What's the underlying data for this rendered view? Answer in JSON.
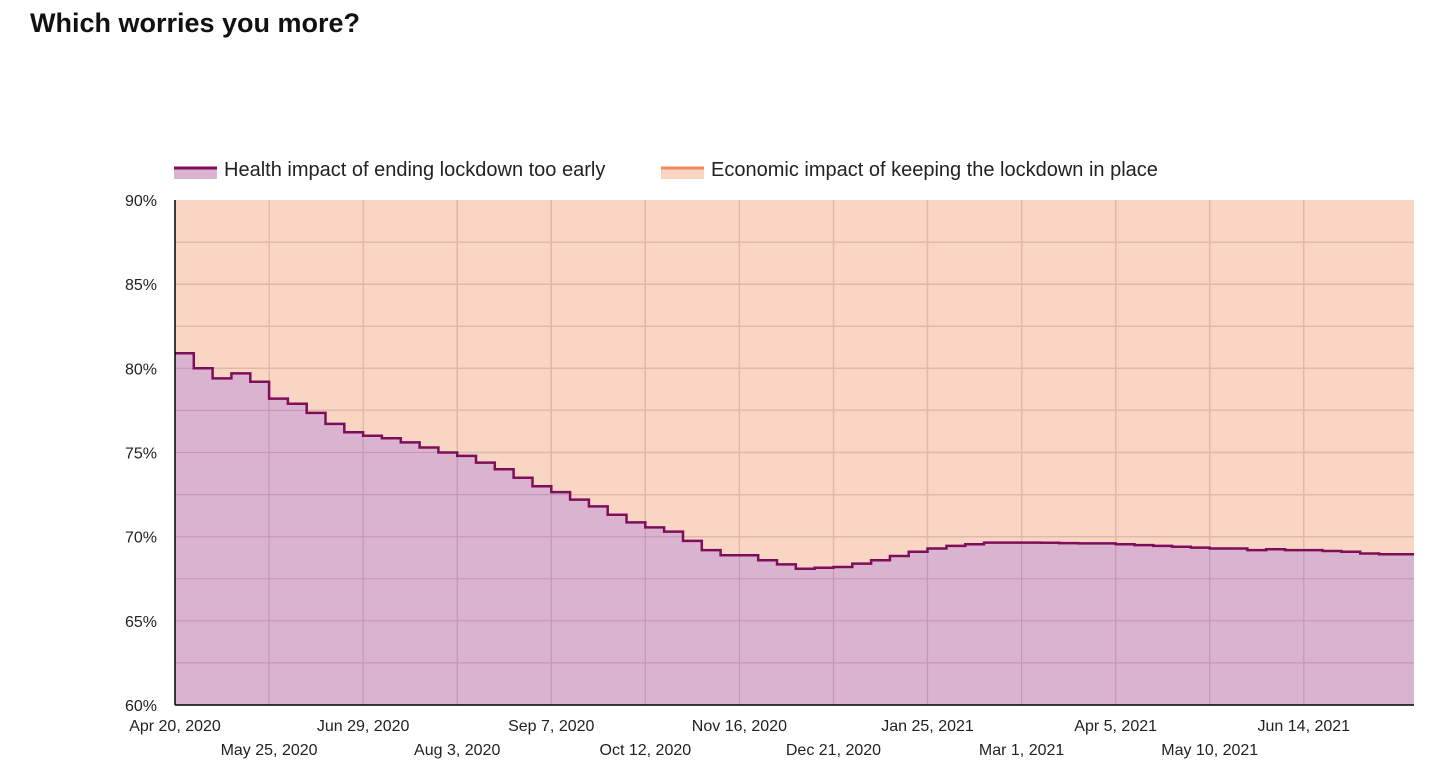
{
  "page_title": "Which worries you more?",
  "colors": {
    "health_line": "#7e0e5c",
    "health_fill": "#dab3cf",
    "economic_line": "#f08a5d",
    "economic_fill": "#f9d6c4",
    "grid_on_economic": "#e4b9a6",
    "grid_on_health": "#c598b8",
    "axis": "#000000"
  },
  "chart_data": {
    "type": "area",
    "title": "Which worries you more?",
    "stacked_to": 100,
    "legend_position": "top",
    "ylim": [
      60,
      90
    ],
    "y_ticks": [
      60,
      65,
      70,
      75,
      80,
      85,
      90
    ],
    "y_tick_labels": [
      "60%",
      "65%",
      "70%",
      "75%",
      "80%",
      "85%",
      "90%"
    ],
    "x_start": "2020-04-20",
    "x_end": "2021-07-25",
    "x_ticks": [
      {
        "date": "2020-04-20",
        "label": "Apr 20, 2020",
        "row": 0
      },
      {
        "date": "2020-05-25",
        "label": "May 25, 2020",
        "row": 1
      },
      {
        "date": "2020-06-29",
        "label": "Jun 29, 2020",
        "row": 0
      },
      {
        "date": "2020-08-03",
        "label": "Aug 3, 2020",
        "row": 1
      },
      {
        "date": "2020-09-07",
        "label": "Sep 7, 2020",
        "row": 0
      },
      {
        "date": "2020-10-12",
        "label": "Oct 12, 2020",
        "row": 1
      },
      {
        "date": "2020-11-16",
        "label": "Nov 16, 2020",
        "row": 0
      },
      {
        "date": "2020-12-21",
        "label": "Dec 21, 2020",
        "row": 1
      },
      {
        "date": "2021-01-25",
        "label": "Jan 25, 2021",
        "row": 0
      },
      {
        "date": "2021-03-01",
        "label": "Mar 1, 2021",
        "row": 1
      },
      {
        "date": "2021-04-05",
        "label": "Apr 5, 2021",
        "row": 0
      },
      {
        "date": "2021-05-10",
        "label": "May 10, 2021",
        "row": 1
      },
      {
        "date": "2021-06-14",
        "label": "Jun 14, 2021",
        "row": 0
      }
    ],
    "series": [
      {
        "name": "Health impact of ending lockdown too early",
        "step": true,
        "points": [
          {
            "date": "2020-04-20",
            "value": 80.9
          },
          {
            "date": "2020-04-27",
            "value": 80.0
          },
          {
            "date": "2020-05-04",
            "value": 79.4
          },
          {
            "date": "2020-05-11",
            "value": 79.7
          },
          {
            "date": "2020-05-18",
            "value": 79.2
          },
          {
            "date": "2020-05-25",
            "value": 78.2
          },
          {
            "date": "2020-06-01",
            "value": 77.9
          },
          {
            "date": "2020-06-08",
            "value": 77.35
          },
          {
            "date": "2020-06-15",
            "value": 76.7
          },
          {
            "date": "2020-06-22",
            "value": 76.2
          },
          {
            "date": "2020-06-29",
            "value": 76.0
          },
          {
            "date": "2020-07-06",
            "value": 75.85
          },
          {
            "date": "2020-07-13",
            "value": 75.6
          },
          {
            "date": "2020-07-20",
            "value": 75.3
          },
          {
            "date": "2020-07-27",
            "value": 75.0
          },
          {
            "date": "2020-08-03",
            "value": 74.8
          },
          {
            "date": "2020-08-10",
            "value": 74.4
          },
          {
            "date": "2020-08-17",
            "value": 74.0
          },
          {
            "date": "2020-08-24",
            "value": 73.5
          },
          {
            "date": "2020-08-31",
            "value": 73.0
          },
          {
            "date": "2020-09-07",
            "value": 72.65
          },
          {
            "date": "2020-09-14",
            "value": 72.2
          },
          {
            "date": "2020-09-21",
            "value": 71.8
          },
          {
            "date": "2020-09-28",
            "value": 71.3
          },
          {
            "date": "2020-10-05",
            "value": 70.85
          },
          {
            "date": "2020-10-12",
            "value": 70.55
          },
          {
            "date": "2020-10-19",
            "value": 70.3
          },
          {
            "date": "2020-10-26",
            "value": 69.75
          },
          {
            "date": "2020-11-02",
            "value": 69.2
          },
          {
            "date": "2020-11-09",
            "value": 68.9
          },
          {
            "date": "2020-11-16",
            "value": 68.9
          },
          {
            "date": "2020-11-23",
            "value": 68.6
          },
          {
            "date": "2020-11-30",
            "value": 68.35
          },
          {
            "date": "2020-12-07",
            "value": 68.1
          },
          {
            "date": "2020-12-14",
            "value": 68.15
          },
          {
            "date": "2020-12-21",
            "value": 68.2
          },
          {
            "date": "2020-12-28",
            "value": 68.4
          },
          {
            "date": "2021-01-04",
            "value": 68.6
          },
          {
            "date": "2021-01-11",
            "value": 68.85
          },
          {
            "date": "2021-01-18",
            "value": 69.1
          },
          {
            "date": "2021-01-25",
            "value": 69.3
          },
          {
            "date": "2021-02-01",
            "value": 69.45
          },
          {
            "date": "2021-02-08",
            "value": 69.55
          },
          {
            "date": "2021-02-15",
            "value": 69.65
          },
          {
            "date": "2021-02-22",
            "value": 69.65
          },
          {
            "date": "2021-03-01",
            "value": 69.65
          },
          {
            "date": "2021-03-08",
            "value": 69.64
          },
          {
            "date": "2021-03-15",
            "value": 69.62
          },
          {
            "date": "2021-03-22",
            "value": 69.6
          },
          {
            "date": "2021-03-29",
            "value": 69.6
          },
          {
            "date": "2021-04-05",
            "value": 69.55
          },
          {
            "date": "2021-04-12",
            "value": 69.5
          },
          {
            "date": "2021-04-19",
            "value": 69.45
          },
          {
            "date": "2021-04-26",
            "value": 69.4
          },
          {
            "date": "2021-05-03",
            "value": 69.35
          },
          {
            "date": "2021-05-10",
            "value": 69.3
          },
          {
            "date": "2021-05-17",
            "value": 69.3
          },
          {
            "date": "2021-05-24",
            "value": 69.2
          },
          {
            "date": "2021-05-31",
            "value": 69.25
          },
          {
            "date": "2021-06-07",
            "value": 69.2
          },
          {
            "date": "2021-06-14",
            "value": 69.2
          },
          {
            "date": "2021-06-21",
            "value": 69.15
          },
          {
            "date": "2021-06-28",
            "value": 69.1
          },
          {
            "date": "2021-07-05",
            "value": 69.0
          },
          {
            "date": "2021-07-12",
            "value": 68.95
          },
          {
            "date": "2021-07-19",
            "value": 68.95
          }
        ]
      },
      {
        "name": "Economic impact of keeping the lockdown in place",
        "note": "complement of first series (stacked to 100%)"
      }
    ]
  }
}
